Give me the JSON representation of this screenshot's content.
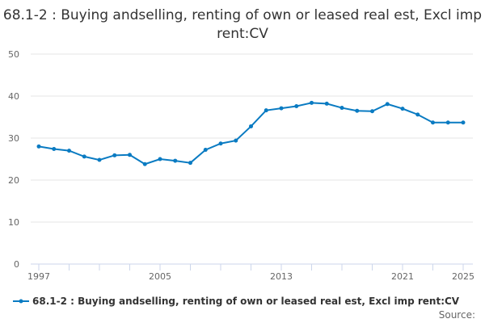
{
  "chart_data": {
    "type": "line",
    "title": "68.1-2 : Buying andselling, renting of own or leased real est, Excl imp rent:CV",
    "x": [
      1997,
      1998,
      1999,
      2000,
      2001,
      2002,
      2003,
      2004,
      2005,
      2006,
      2007,
      2008,
      2009,
      2010,
      2011,
      2012,
      2013,
      2014,
      2015,
      2016,
      2017,
      2018,
      2019,
      2020,
      2021,
      2022,
      2023,
      2024,
      2025
    ],
    "series": [
      {
        "name": "68.1-2 : Buying andselling, renting of own or leased real est, Excl imp rent:CV",
        "values": [
          28.0,
          27.4,
          27.0,
          25.6,
          24.8,
          25.9,
          26.0,
          23.8,
          25.0,
          24.6,
          24.1,
          27.2,
          28.7,
          29.4,
          32.8,
          36.6,
          37.1,
          37.6,
          38.4,
          38.2,
          37.2,
          36.5,
          36.4,
          38.1,
          37.0,
          35.6,
          33.7,
          33.7,
          33.7
        ],
        "color": "#0a7bc2"
      }
    ],
    "xticks": [
      1997,
      2005,
      2013,
      2021,
      2025
    ],
    "yticks": [
      0,
      10,
      20,
      30,
      40,
      50
    ],
    "ylim": [
      0,
      50
    ],
    "xlim": [
      1997,
      2025
    ],
    "grid": "horizontal",
    "legend": "bottom-left",
    "source": "Source:"
  }
}
